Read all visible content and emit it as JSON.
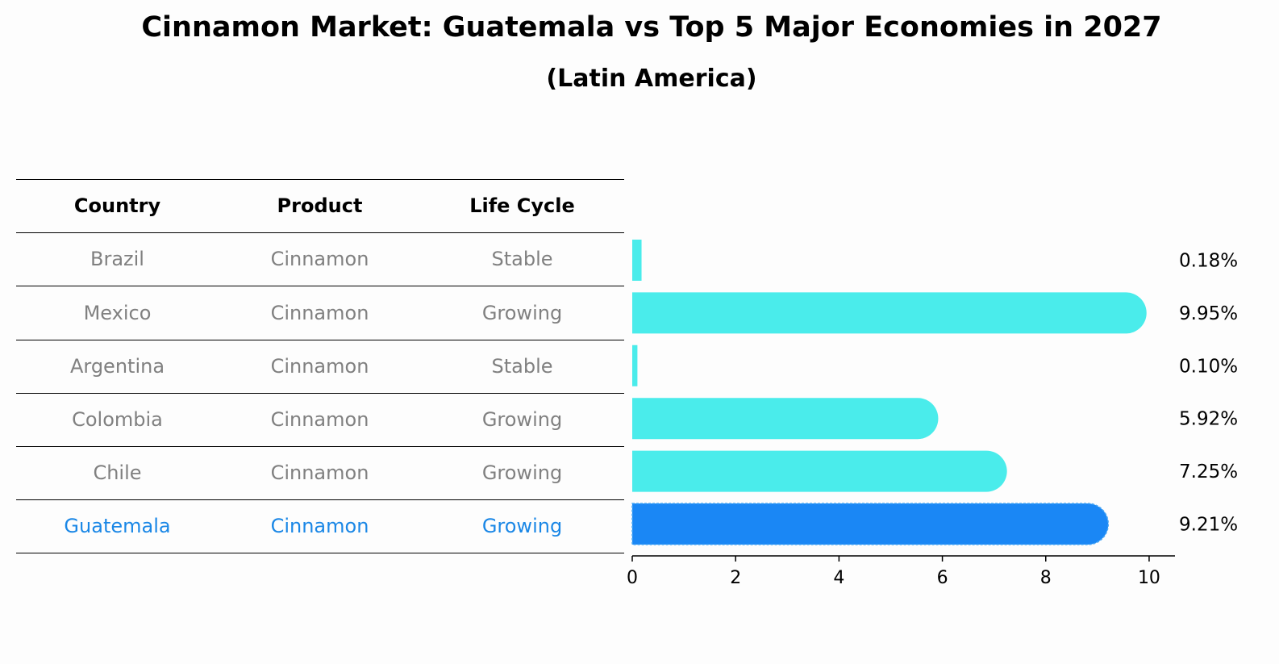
{
  "title": "Cinnamon Market: Guatemala vs Top 5 Major Economies in 2027",
  "subtitle": "(Latin America)",
  "table": {
    "headers": [
      "Country",
      "Product",
      "Life Cycle"
    ],
    "rows": [
      {
        "country": "Brazil",
        "product": "Cinnamon",
        "life_cycle": "Stable"
      },
      {
        "country": "Mexico",
        "product": "Cinnamon",
        "life_cycle": "Growing"
      },
      {
        "country": "Argentina",
        "product": "Cinnamon",
        "life_cycle": "Stable"
      },
      {
        "country": "Colombia",
        "product": "Cinnamon",
        "life_cycle": "Growing"
      },
      {
        "country": "Chile",
        "product": "Cinnamon",
        "life_cycle": "Growing"
      },
      {
        "country": "Guatemala",
        "product": "Cinnamon",
        "life_cycle": "Growing"
      }
    ]
  },
  "colors": {
    "bar": "#4aeceb",
    "highlight_bar": "#1a87f5",
    "highlight_text": "#1a87e6",
    "muted_text": "#808080"
  },
  "chart_data": {
    "type": "bar",
    "orientation": "horizontal",
    "categories": [
      "Brazil",
      "Mexico",
      "Argentina",
      "Colombia",
      "Chile",
      "Guatemala"
    ],
    "values": [
      0.18,
      9.95,
      0.1,
      5.92,
      7.25,
      9.21
    ],
    "value_labels": [
      "0.18%",
      "9.95%",
      "0.10%",
      "5.92%",
      "7.25%",
      "9.21%"
    ],
    "highlight": "Guatemala",
    "xlim": [
      0,
      10.5
    ],
    "xticks": [
      0,
      2,
      4,
      6,
      8,
      10
    ],
    "xlabel": "",
    "ylabel": "",
    "grid": false
  }
}
